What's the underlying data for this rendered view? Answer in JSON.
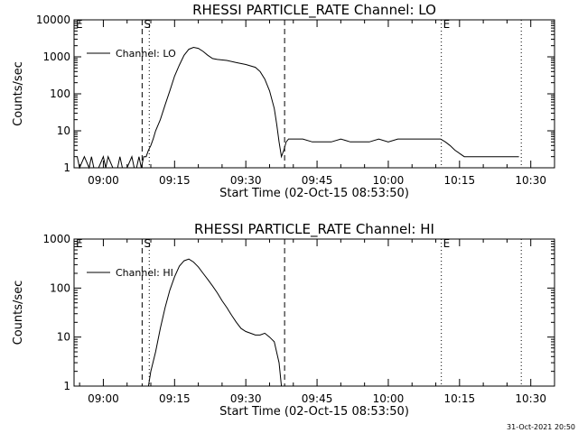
{
  "footer": {
    "timestamp": "31-Oct-2021 20:50"
  },
  "chart_data": [
    {
      "type": "line",
      "title": "RHESSI PARTICLE_RATE Channel: LO",
      "xlabel": "Start Time (02-Oct-15 08:53:50)",
      "ylabel": "Counts/sec",
      "yscale": "log",
      "ylim": [
        1,
        10000
      ],
      "xlim": [
        "08:53:50",
        "10:35:00"
      ],
      "x_ticks": [
        "09:00",
        "09:15",
        "09:30",
        "09:45",
        "10:00",
        "10:15",
        "10:30"
      ],
      "y_ticks": [
        "1",
        "10",
        "100",
        "1000",
        "10000"
      ],
      "legend": {
        "position": "top-left",
        "entries": [
          "Channel: LO"
        ]
      },
      "vlines_dashed": [
        "09:08:10",
        "09:38:10"
      ],
      "vlines_dotted": [
        "09:09:40",
        "10:11:10",
        "10:28:00"
      ],
      "markers": [
        {
          "label": "E",
          "x": "08:53:50"
        },
        {
          "label": "S",
          "x": "09:08:10"
        },
        {
          "label": "E",
          "x": "10:11:10"
        }
      ],
      "series": [
        {
          "name": "Channel: LO",
          "x": [
            "08:54:30",
            "08:55:00",
            "08:56:00",
            "08:57:00",
            "08:57:30",
            "08:58:00",
            "08:59:00",
            "09:00:00",
            "09:00:30",
            "09:01:00",
            "09:02:00",
            "09:03:00",
            "09:03:30",
            "09:04:00",
            "09:05:00",
            "09:06:00",
            "09:06:30",
            "09:07:00",
            "09:07:30",
            "09:08:00",
            "09:08:30",
            "09:09:00",
            "09:09:30",
            "09:10:00",
            "09:10:30",
            "09:11:00",
            "09:12:00",
            "09:13:00",
            "09:14:00",
            "09:15:00",
            "09:16:00",
            "09:17:00",
            "09:18:00",
            "09:19:00",
            "09:20:00",
            "09:21:00",
            "09:22:00",
            "09:23:00",
            "09:24:00",
            "09:26:00",
            "09:28:00",
            "09:30:00",
            "09:32:00",
            "09:33:00",
            "09:34:00",
            "09:35:00",
            "09:36:00",
            "09:36:30",
            "09:37:00",
            "09:37:30",
            "09:38:00",
            "09:38:30",
            "09:39:00",
            "09:40:00",
            "09:42:00",
            "09:44:00",
            "09:46:00",
            "09:48:00",
            "09:50:00",
            "09:52:00",
            "09:54:00",
            "09:56:00",
            "09:58:00",
            "10:00:00",
            "10:02:00",
            "10:04:00",
            "10:06:00",
            "10:08:00",
            "10:10:00",
            "10:11:00",
            "10:12:00",
            "10:13:00",
            "10:14:00",
            "10:16:00",
            "10:18:00",
            "10:20:00",
            "10:22:00",
            "10:24:00",
            "10:26:00",
            "10:27:30"
          ],
          "values": [
            2,
            1,
            2,
            1,
            2,
            1,
            1,
            2,
            1,
            2,
            1,
            1,
            2,
            1,
            1,
            2,
            1,
            1,
            2,
            1,
            2,
            2,
            3,
            4,
            6,
            10,
            20,
            50,
            120,
            300,
            600,
            1100,
            1600,
            1800,
            1700,
            1400,
            1100,
            900,
            850,
            800,
            700,
            620,
            520,
            400,
            250,
            120,
            40,
            15,
            5,
            2,
            3,
            5,
            6,
            6,
            6,
            5,
            5,
            5,
            6,
            5,
            5,
            5,
            6,
            5,
            6,
            6,
            6,
            6,
            6,
            6,
            5,
            4,
            3,
            2,
            2,
            2,
            2,
            2,
            2,
            2
          ]
        }
      ]
    },
    {
      "type": "line",
      "title": "RHESSI PARTICLE_RATE Channel: HI",
      "xlabel": "Start Time (02-Oct-15 08:53:50)",
      "ylabel": "Counts/sec",
      "yscale": "log",
      "ylim": [
        1,
        1000
      ],
      "xlim": [
        "08:53:50",
        "10:35:00"
      ],
      "x_ticks": [
        "09:00",
        "09:15",
        "09:30",
        "09:45",
        "10:00",
        "10:15",
        "10:30"
      ],
      "y_ticks": [
        "1",
        "10",
        "100",
        "1000"
      ],
      "legend": {
        "position": "top-left",
        "entries": [
          "Channel: HI"
        ]
      },
      "vlines_dashed": [
        "09:08:10",
        "09:38:10"
      ],
      "vlines_dotted": [
        "09:09:40",
        "10:11:10",
        "10:28:00"
      ],
      "markers": [
        {
          "label": "E",
          "x": "08:53:50"
        },
        {
          "label": "S",
          "x": "09:08:10"
        },
        {
          "label": "E",
          "x": "10:11:10"
        }
      ],
      "series": [
        {
          "name": "Channel: HI",
          "x": [
            "09:09:30",
            "09:10:00",
            "09:11:00",
            "09:12:00",
            "09:13:00",
            "09:14:00",
            "09:15:00",
            "09:16:00",
            "09:17:00",
            "09:18:00",
            "09:19:00",
            "09:20:00",
            "09:21:00",
            "09:22:00",
            "09:23:00",
            "09:24:00",
            "09:25:00",
            "09:26:00",
            "09:27:00",
            "09:28:00",
            "09:29:00",
            "09:30:00",
            "09:31:00",
            "09:32:00",
            "09:33:00",
            "09:34:00",
            "09:35:00",
            "09:36:00",
            "09:37:00",
            "09:37:30"
          ],
          "values": [
            1,
            2,
            5,
            15,
            40,
            90,
            170,
            280,
            360,
            390,
            340,
            270,
            200,
            150,
            110,
            80,
            55,
            40,
            28,
            20,
            15,
            13,
            12,
            11,
            11,
            12,
            10,
            8,
            3,
            1
          ]
        }
      ]
    }
  ]
}
